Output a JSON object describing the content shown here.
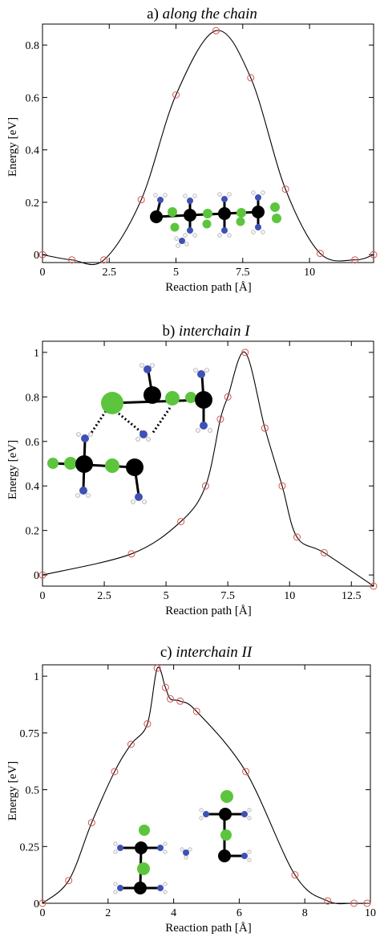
{
  "chart_data": [
    {
      "type": "line",
      "title_prefix": "a) ",
      "title_italic": "along the chain",
      "xlabel": "Reaction path [Å]",
      "ylabel": "Energy [eV]",
      "xlim": [
        0,
        12.4
      ],
      "ylim": [
        -0.03,
        0.88
      ],
      "xticks": [
        0,
        2.5,
        5,
        7.5,
        10
      ],
      "xtick_labels": [
        "0",
        "2.5",
        "5",
        "7.5",
        "10"
      ],
      "yticks": [
        0,
        0.2,
        0.4,
        0.6,
        0.8
      ],
      "ytick_labels": [
        "0",
        "0.2",
        "0.4",
        "0.6",
        "0.8"
      ],
      "series": [
        {
          "x": [
            0,
            1.1,
            2.3,
            3.7,
            5.0,
            6.5,
            7.8,
            9.1,
            10.4,
            11.7,
            12.4
          ],
          "y": [
            0.0,
            -0.02,
            -0.02,
            0.21,
            0.61,
            0.855,
            0.675,
            0.25,
            0.005,
            -0.02,
            0.0
          ]
        }
      ]
    },
    {
      "type": "line",
      "title_prefix": "b) ",
      "title_italic": "interchain I",
      "xlabel": "Reaction path [Å]",
      "ylabel": "Energy [eV]",
      "xlim": [
        0,
        13.4
      ],
      "ylim": [
        -0.05,
        1.05
      ],
      "xticks": [
        0,
        2.5,
        5,
        7.5,
        10,
        12.5
      ],
      "xtick_labels": [
        "0",
        "2.5",
        "5",
        "7.5",
        "10",
        "12.5"
      ],
      "yticks": [
        0,
        0.2,
        0.4,
        0.6,
        0.8,
        1
      ],
      "ytick_labels": [
        "0",
        "0.2",
        "0.4",
        "0.6",
        "0.8",
        "1"
      ],
      "series": [
        {
          "x": [
            0,
            3.6,
            5.6,
            6.6,
            7.2,
            7.5,
            8.2,
            9.0,
            9.7,
            10.3,
            11.4,
            13.4
          ],
          "y": [
            0.0,
            0.095,
            0.24,
            0.4,
            0.7,
            0.8,
            1.0,
            0.66,
            0.4,
            0.17,
            0.1,
            -0.05
          ]
        }
      ]
    },
    {
      "type": "line",
      "title_prefix": "c) ",
      "title_italic": "interchain II",
      "xlabel": "Reaction path [Å]",
      "ylabel": "Energy [eV]",
      "xlim": [
        0,
        10
      ],
      "ylim": [
        0,
        1.05
      ],
      "xticks": [
        0,
        2,
        4,
        6,
        8,
        10
      ],
      "xtick_labels": [
        "0",
        "2",
        "4",
        "6",
        "8",
        "10"
      ],
      "yticks": [
        0,
        0.25,
        0.5,
        0.75,
        1
      ],
      "ytick_labels": [
        "0",
        "0.25",
        "0.5",
        "0.75",
        "1"
      ],
      "series": [
        {
          "x": [
            0,
            0.8,
            1.5,
            2.2,
            2.7,
            3.2,
            3.5,
            3.75,
            3.9,
            4.2,
            4.7,
            6.2,
            7.7,
            8.7,
            9.5,
            9.9
          ],
          "y": [
            0.0,
            0.1,
            0.355,
            0.58,
            0.7,
            0.79,
            1.035,
            0.95,
            0.9,
            0.89,
            0.845,
            0.58,
            0.125,
            0.01,
            0.0,
            0.0
          ]
        }
      ]
    }
  ]
}
